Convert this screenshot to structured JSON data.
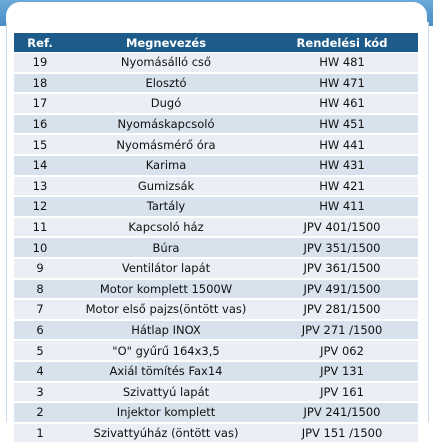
{
  "table": {
    "headers": [
      "Ref.",
      "Megnevezés",
      "Rendelési kód"
    ],
    "rows": [
      [
        "19",
        "Nyomásálló cső",
        "HW 481"
      ],
      [
        "18",
        "Elosztó",
        "HW 471"
      ],
      [
        "17",
        "Dugó",
        "HW 461"
      ],
      [
        "16",
        "Nyomáskapcsoló",
        "HW 451"
      ],
      [
        "15",
        "Nyomásmérő óra",
        "HW 441"
      ],
      [
        "14",
        "Karima",
        "HW 431"
      ],
      [
        "13",
        "Gumizsák",
        "HW 421"
      ],
      [
        "12",
        "Tartály",
        "HW 411"
      ],
      [
        "11",
        "Kapcsoló ház",
        "JPV 401/1500"
      ],
      [
        "10",
        "Búra",
        "JPV 351/1500"
      ],
      [
        "9",
        "Ventilátor lapát",
        "JPV 361/1500"
      ],
      [
        "8",
        "Motor komplett  1500W",
        "JPV 491/1500"
      ],
      [
        "7",
        "Motor első pajzs(öntött vas)",
        "JPV 281/1500"
      ],
      [
        "6",
        "Hátlap INOX",
        "JPV 271 /1500"
      ],
      [
        "5",
        "\"O\" gyűrű 164x3,5",
        "JPV 062"
      ],
      [
        "4",
        "Axiál tömítés Fax14",
        "JPV 131"
      ],
      [
        "3",
        "Szivattyú lapát",
        "JPV 161"
      ],
      [
        "2",
        "Injektor komplett",
        "JPV 241/1500"
      ],
      [
        "1",
        "Szivattyúház (öntött vas)",
        "JPV 151 /1500"
      ]
    ]
  }
}
